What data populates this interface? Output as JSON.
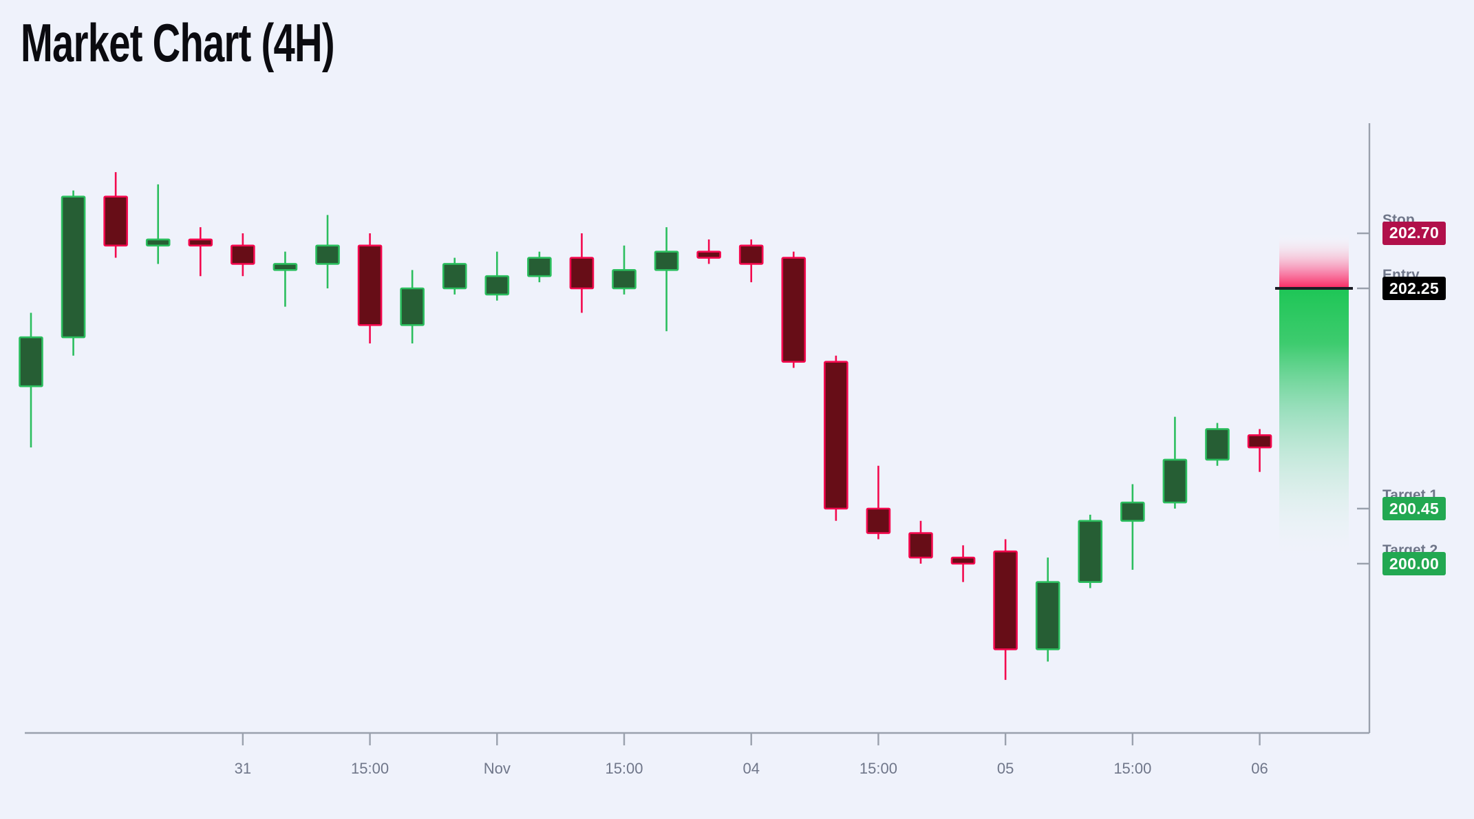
{
  "title": "Market Chart (4H)",
  "colors": {
    "background": "#EFF2FB",
    "candle_up_border": "#2BBE5E",
    "candle_up_fill": "#265E34",
    "candle_down_border": "#F3094E",
    "candle_down_fill": "#670D17",
    "axis_line": "#9AA1AD",
    "tick_label": "#6F7689",
    "level_label": "#6F7689",
    "stop_badge_bg": "#B1104A",
    "entry_badge_bg": "#000000",
    "target_badge_bg": "#22A851",
    "entry_line": "#1A1D24",
    "risk_zone_pink": "#F92760",
    "reward_zone_green": "#1EC656"
  },
  "levels": [
    {
      "name": "Stop",
      "value": "202.70",
      "price": 202.7,
      "type": "stop"
    },
    {
      "name": "Entry",
      "value": "202.25",
      "price": 202.25,
      "type": "entry"
    },
    {
      "name": "Target 1",
      "value": "200.45",
      "price": 200.45,
      "type": "target"
    },
    {
      "name": "Target 2",
      "value": "200.00",
      "price": 200.0,
      "type": "target"
    }
  ],
  "chart_data": {
    "type": "candlestick",
    "title": "Market Chart (4H)",
    "timeframe": "4H",
    "x_tick_labels": [
      "31",
      "15:00",
      "Nov",
      "15:00",
      "04",
      "15:00",
      "05",
      "15:00",
      "06"
    ],
    "x_tick_candle_indices": [
      5,
      8,
      11,
      14,
      17,
      20,
      23,
      26,
      29
    ],
    "y_visible_range": [
      198.9,
      203.6
    ],
    "grid": false,
    "legend": false,
    "annotations": {
      "stop": 202.7,
      "entry": 202.25,
      "target1": 200.45,
      "target2": 200.0,
      "risk_zone": [
        202.25,
        202.7
      ],
      "reward_zone": [
        200.0,
        202.25
      ]
    },
    "candles": [
      {
        "open": 201.45,
        "high": 202.05,
        "low": 200.95,
        "close": 201.85
      },
      {
        "open": 201.85,
        "high": 203.05,
        "low": 201.7,
        "close": 203.0
      },
      {
        "open": 203.0,
        "high": 203.2,
        "low": 202.5,
        "close": 202.6
      },
      {
        "open": 202.6,
        "high": 203.1,
        "low": 202.45,
        "close": 202.65
      },
      {
        "open": 202.65,
        "high": 202.75,
        "low": 202.35,
        "close": 202.6
      },
      {
        "open": 202.6,
        "high": 202.7,
        "low": 202.35,
        "close": 202.45
      },
      {
        "open": 202.4,
        "high": 202.55,
        "low": 202.1,
        "close": 202.45
      },
      {
        "open": 202.45,
        "high": 202.85,
        "low": 202.25,
        "close": 202.6
      },
      {
        "open": 202.6,
        "high": 202.7,
        "low": 201.8,
        "close": 201.95
      },
      {
        "open": 201.95,
        "high": 202.4,
        "low": 201.8,
        "close": 202.25
      },
      {
        "open": 202.25,
        "high": 202.5,
        "low": 202.2,
        "close": 202.45
      },
      {
        "open": 202.2,
        "high": 202.55,
        "low": 202.15,
        "close": 202.35
      },
      {
        "open": 202.35,
        "high": 202.55,
        "low": 202.3,
        "close": 202.5
      },
      {
        "open": 202.5,
        "high": 202.7,
        "low": 202.05,
        "close": 202.25
      },
      {
        "open": 202.25,
        "high": 202.6,
        "low": 202.2,
        "close": 202.4
      },
      {
        "open": 202.4,
        "high": 202.75,
        "low": 201.9,
        "close": 202.55
      },
      {
        "open": 202.55,
        "high": 202.65,
        "low": 202.45,
        "close": 202.5
      },
      {
        "open": 202.6,
        "high": 202.65,
        "low": 202.3,
        "close": 202.45
      },
      {
        "open": 202.5,
        "high": 202.55,
        "low": 201.6,
        "close": 201.65
      },
      {
        "open": 201.65,
        "high": 201.7,
        "low": 200.35,
        "close": 200.45
      },
      {
        "open": 200.45,
        "high": 200.8,
        "low": 200.2,
        "close": 200.25
      },
      {
        "open": 200.25,
        "high": 200.35,
        "low": 200.0,
        "close": 200.05
      },
      {
        "open": 200.05,
        "high": 200.15,
        "low": 199.85,
        "close": 200.0
      },
      {
        "open": 200.1,
        "high": 200.2,
        "low": 199.05,
        "close": 199.3
      },
      {
        "open": 199.3,
        "high": 200.05,
        "low": 199.2,
        "close": 199.85
      },
      {
        "open": 199.85,
        "high": 200.4,
        "low": 199.8,
        "close": 200.35
      },
      {
        "open": 200.35,
        "high": 200.65,
        "low": 199.95,
        "close": 200.5
      },
      {
        "open": 200.5,
        "high": 201.2,
        "low": 200.45,
        "close": 200.85
      },
      {
        "open": 200.85,
        "high": 201.15,
        "low": 200.8,
        "close": 201.1
      },
      {
        "open": 201.05,
        "high": 201.1,
        "low": 200.75,
        "close": 200.95
      }
    ]
  }
}
